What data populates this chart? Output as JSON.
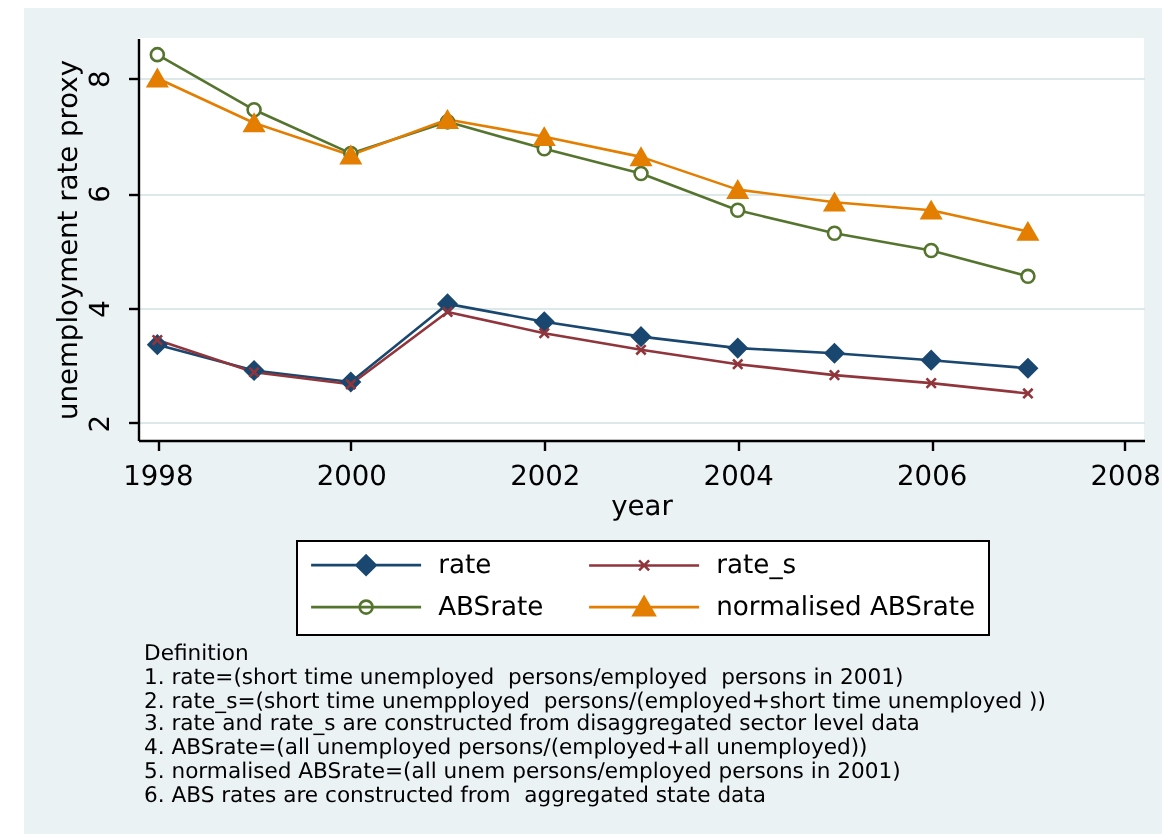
{
  "chart_data": {
    "type": "line",
    "xlabel": "year",
    "ylabel": "unemployment rate proxy",
    "x": [
      1998,
      1999,
      2000,
      2001,
      2002,
      2003,
      2004,
      2005,
      2006,
      2007
    ],
    "series": [
      {
        "name": "rate",
        "color": "#1a476f",
        "marker": "diamond",
        "values": [
          3.36,
          2.91,
          2.71,
          4.07,
          3.76,
          3.5,
          3.3,
          3.21,
          3.09,
          2.95
        ]
      },
      {
        "name": "rate_s",
        "color": "#90353b",
        "marker": "cross",
        "values": [
          3.44,
          2.88,
          2.67,
          3.93,
          3.56,
          3.27,
          3.02,
          2.83,
          2.69,
          2.51
        ]
      },
      {
        "name": "ABSrate",
        "color": "#55752f",
        "marker": "circle",
        "values": [
          8.41,
          7.45,
          6.69,
          7.24,
          6.77,
          6.34,
          5.7,
          5.3,
          5.0,
          4.55
        ]
      },
      {
        "name": "normalised ABSrate",
        "color": "#e37e00",
        "marker": "triangle",
        "values": [
          8.0,
          7.22,
          6.66,
          7.28,
          6.98,
          6.63,
          6.06,
          5.84,
          5.7,
          5.33
        ]
      }
    ],
    "xlim": [
      1997.8,
      2008.2
    ],
    "xticks": [
      1998,
      2000,
      2002,
      2004,
      2006,
      2008
    ],
    "ylim": [
      1.7,
      8.7
    ],
    "yticks": [
      2,
      4,
      6,
      8
    ],
    "grid": "y",
    "legend": "bottom",
    "annotations": [
      "Definition",
      "1. rate=(short time unemployed  persons/employed  persons in 2001)",
      "2. rate_s=(short time unempployed  persons/(employed+short time unemployed ))",
      "3. rate and rate_s are constructed from disaggregated sector level data",
      "4. ABSrate=(all unemployed persons/(employed+all unemployed))",
      "5. normalised ABSrate=(all unem persons/employed persons in 2001)",
      "6. ABS rates are constructed from  aggregated state data"
    ]
  }
}
